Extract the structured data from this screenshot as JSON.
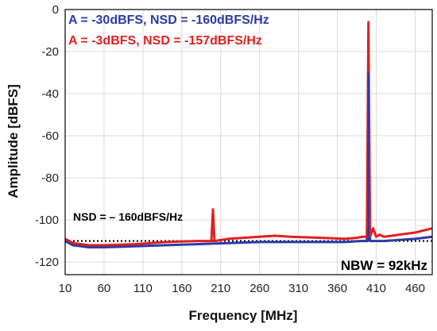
{
  "chart_data": {
    "type": "line",
    "title": "",
    "xlabel": "Frequency [MHz]",
    "ylabel": "Amplitude [dBFS]",
    "xlim": [
      10,
      482
    ],
    "ylim": [
      -126,
      0
    ],
    "xticks": [
      10,
      60,
      110,
      160,
      210,
      260,
      310,
      360,
      410,
      460
    ],
    "yticks": [
      0,
      -20,
      -40,
      -60,
      -80,
      -100,
      -120
    ],
    "grid": true,
    "legend_position": "top-left",
    "series": [
      {
        "name": "A = -30dBFS, NSD = -160dBFS/Hz",
        "color": "#2b3aa6",
        "x": [
          10,
          20,
          40,
          60,
          100,
          140,
          180,
          220,
          260,
          300,
          340,
          370,
          390,
          395,
          398,
          400,
          402,
          405,
          420,
          440,
          460,
          482
        ],
        "y": [
          -110,
          -112,
          -113,
          -113,
          -112.5,
          -112,
          -111.5,
          -111,
          -110.5,
          -110.5,
          -110.5,
          -110.5,
          -110,
          -110,
          -110,
          -30,
          -110,
          -110,
          -110,
          -109.5,
          -109,
          -108
        ]
      },
      {
        "name": "A = -3dBFS, NSD = -157dBFS/Hz",
        "color": "#e02020",
        "x": [
          10,
          20,
          40,
          60,
          100,
          140,
          180,
          198,
          200,
          202,
          220,
          260,
          280,
          300,
          340,
          370,
          385,
          392,
          398,
          400,
          402,
          406,
          410,
          414,
          420,
          440,
          460,
          482
        ],
        "y": [
          -109,
          -111,
          -112,
          -112,
          -111.5,
          -110.5,
          -110,
          -110,
          -95,
          -110,
          -109,
          -108,
          -107.5,
          -108,
          -108.5,
          -109,
          -108.5,
          -108,
          -108,
          -6,
          -108,
          -104,
          -108,
          -107,
          -108,
          -107,
          -106,
          -104
        ]
      }
    ],
    "reference_line": {
      "label": "NSD = – 160dBFS/Hz",
      "y": -110,
      "style": "dotted"
    },
    "annotations": [
      {
        "text": "NBW = 92kHz"
      }
    ]
  }
}
